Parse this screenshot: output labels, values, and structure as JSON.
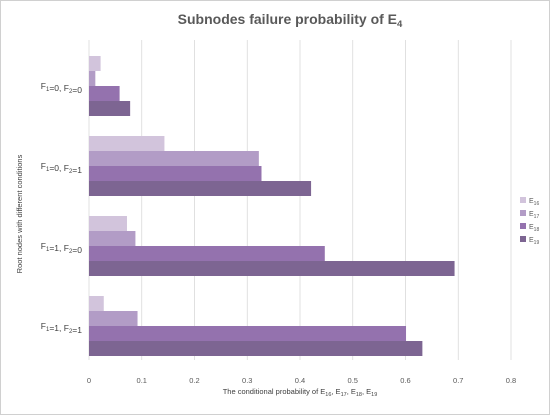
{
  "chart_data": {
    "type": "bar",
    "orientation": "horizontal",
    "title": "Subnodes failure probability of E4",
    "xlabel": "The conditional probability of E16, E17, E18, E19",
    "ylabel": "Root nodes with different conditions",
    "xlim": [
      0,
      0.8
    ],
    "x_ticks": [
      "0",
      "0.1",
      "0.2",
      "0.3",
      "0.4",
      "0.5",
      "0.6",
      "0.7",
      "0.8"
    ],
    "grid": true,
    "legend_position": "right",
    "categories": [
      "F1=0, F2=0",
      "F1=0, F2=1",
      "F1=1, F2=0",
      "F1=1, F2=1"
    ],
    "series": [
      {
        "name": "E16",
        "color": "#d2c4dc",
        "values": [
          0.022,
          0.143,
          0.072,
          0.028
        ]
      },
      {
        "name": "E17",
        "color": "#b29cc6",
        "values": [
          0.012,
          0.322,
          0.088,
          0.092
        ]
      },
      {
        "name": "E18",
        "color": "#9472ae",
        "values": [
          0.058,
          0.327,
          0.447,
          0.601
        ]
      },
      {
        "name": "E19",
        "color": "#7d6592",
        "values": [
          0.078,
          0.421,
          0.693,
          0.632
        ]
      }
    ]
  }
}
